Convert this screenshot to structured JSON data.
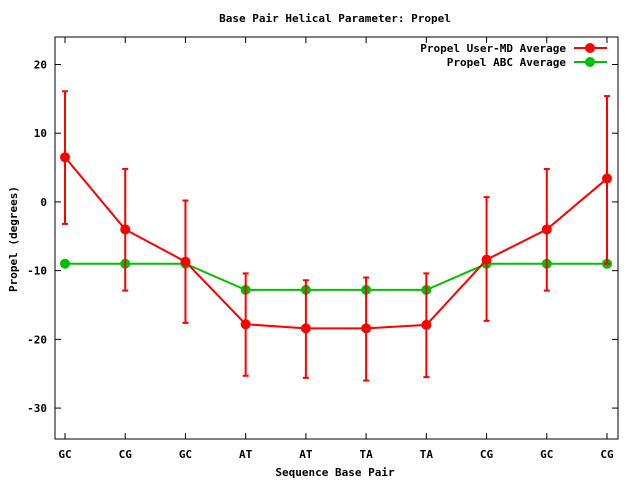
{
  "chart_data": {
    "type": "line",
    "title": "Base Pair Helical Parameter: Propel",
    "xlabel": "Sequence Base Pair",
    "ylabel": "Propel (degrees)",
    "categories": [
      "GC",
      "CG",
      "GC",
      "AT",
      "AT",
      "TA",
      "TA",
      "CG",
      "GC",
      "CG"
    ],
    "ylim": [
      -34.5,
      24
    ],
    "yticks": [
      20,
      10,
      0,
      -10,
      -20,
      -30
    ],
    "grid": false,
    "legend_position": "top-right",
    "series": [
      {
        "name": "Propel User-MD Average",
        "color": "#ff0000",
        "values": [
          6.5,
          -4.0,
          -8.7,
          -17.8,
          -18.4,
          -18.4,
          -17.9,
          -8.4,
          -4.0,
          3.4
        ],
        "error_low": [
          -3.2,
          -12.9,
          -17.6,
          -25.3,
          -25.6,
          -26.0,
          -25.5,
          -17.3,
          -12.9,
          -9.0
        ],
        "error_high": [
          16.1,
          4.8,
          0.2,
          -10.4,
          -11.4,
          -11.0,
          -10.4,
          0.7,
          4.8,
          15.4
        ]
      },
      {
        "name": "Propel ABC Average",
        "color": "#00c000",
        "values": [
          -9.0,
          -9.0,
          -9.0,
          -12.8,
          -12.8,
          -12.8,
          -12.8,
          -9.0,
          -9.0,
          -9.0
        ]
      }
    ]
  }
}
